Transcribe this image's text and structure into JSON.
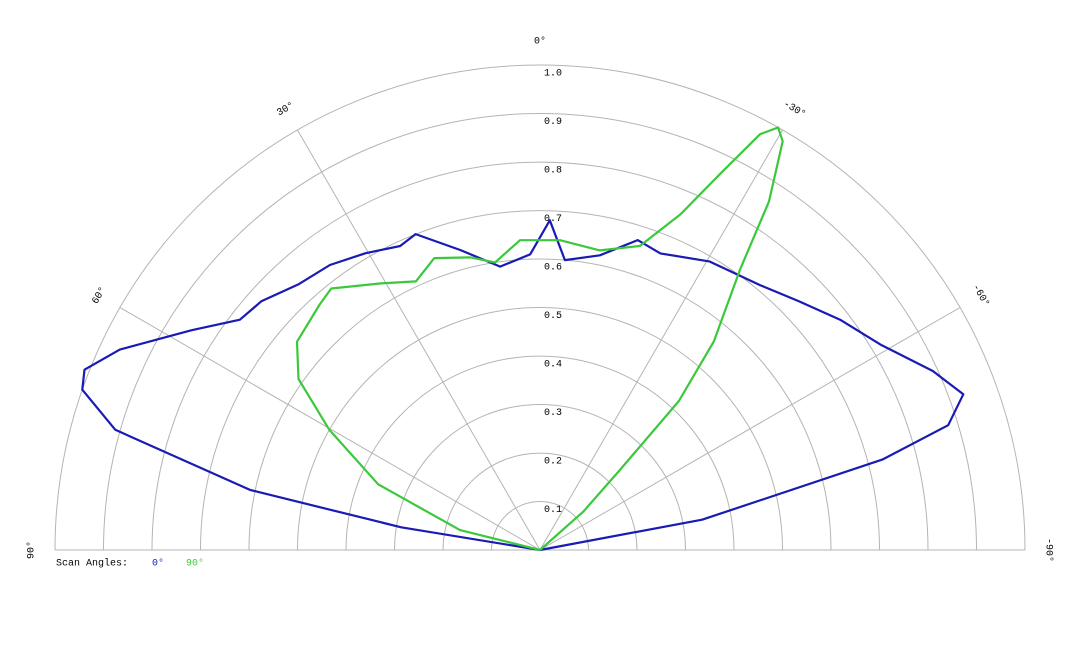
{
  "chart_data": {
    "type": "polar",
    "legend_title": "Scan Angles:",
    "rlim": [
      0,
      1
    ],
    "rticks": [
      0.1,
      0.2,
      0.3,
      0.4,
      0.5,
      0.6,
      0.7,
      0.8,
      0.9,
      {
        "value": 1,
        "label": "1.0"
      }
    ],
    "thetalim": [
      -90,
      90
    ],
    "thetaticks": [
      {
        "value": 90,
        "label": "90°"
      },
      {
        "value": 60,
        "label": "60°"
      },
      {
        "value": 30,
        "label": "30°"
      },
      {
        "value": 0,
        "label": "0°"
      },
      {
        "value": -30,
        "label": "-30°"
      },
      {
        "value": -60,
        "label": "-60°"
      },
      {
        "value": -90,
        "label": "-90°"
      }
    ],
    "series": [
      {
        "name": "0°",
        "color": "#1a1ab4",
        "x": [
          -90,
          -79.4,
          -75.2,
          -73,
          -69.8,
          -65.5,
          -58.9,
          -52.5,
          -46.1,
          -39.7,
          -30.4,
          -22.1,
          -17.5,
          -11.5,
          -4.9,
          -1.7,
          1.9,
          8,
          14.9,
          21.5,
          24.7,
          30.5,
          36.4,
          42.2,
          48.2,
          52.5,
          57.8,
          64.5,
          68.4,
          70.7,
          74.2,
          78.3,
          80.7,
          90
        ],
        "values": [
          0,
          0.34,
          0.73,
          0.88,
          0.93,
          0.89,
          0.82,
          0.78,
          0.74,
          0.71,
          0.69,
          0.66,
          0.67,
          0.62,
          0.6,
          0.68,
          0.61,
          0.59,
          0.64,
          0.7,
          0.69,
          0.71,
          0.73,
          0.74,
          0.77,
          0.78,
          0.85,
          0.96,
          1.01,
          1.0,
          0.91,
          0.61,
          0.29,
          0
        ]
      },
      {
        "name": "90°",
        "color": "#3cc83c",
        "x": [
          -90,
          -48.4,
          -45,
          -43,
          -39.8,
          -35.5,
          -33.3,
          -30.7,
          -29.4,
          -27.9,
          -25.6,
          -22.7,
          -18.2,
          -11.3,
          -3.7,
          3.7,
          8.9,
          13.3,
          19.9,
          24.8,
          30.8,
          38.6,
          41.9,
          49.4,
          54.7,
          60.3,
          67.9,
          76,
          90
        ],
        "values": [
          0,
          0.12,
          0.23,
          0.42,
          0.56,
          0.71,
          0.86,
          0.98,
          1.0,
          0.97,
          0.86,
          0.75,
          0.66,
          0.63,
          0.64,
          0.64,
          0.6,
          0.62,
          0.64,
          0.61,
          0.64,
          0.69,
          0.68,
          0.66,
          0.61,
          0.5,
          0.36,
          0.17,
          0
        ]
      }
    ]
  }
}
